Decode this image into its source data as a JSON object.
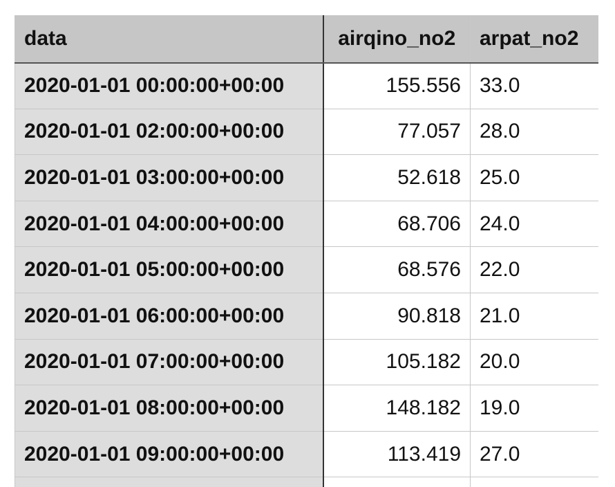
{
  "table": {
    "headers": [
      "data",
      "airqino_no2",
      "arpat_no2"
    ],
    "rows": [
      [
        "2020-01-01 00:00:00+00:00",
        "155.556",
        "33.0"
      ],
      [
        "2020-01-01 02:00:00+00:00",
        "77.057",
        "28.0"
      ],
      [
        "2020-01-01 03:00:00+00:00",
        "52.618",
        "25.0"
      ],
      [
        "2020-01-01 04:00:00+00:00",
        "68.706",
        "24.0"
      ],
      [
        "2020-01-01 05:00:00+00:00",
        "68.576",
        "22.0"
      ],
      [
        "2020-01-01 06:00:00+00:00",
        "90.818",
        "21.0"
      ],
      [
        "2020-01-01 07:00:00+00:00",
        "105.182",
        "20.0"
      ],
      [
        "2020-01-01 08:00:00+00:00",
        "148.182",
        "19.0"
      ],
      [
        "2020-01-01 09:00:00+00:00",
        "113.419",
        "27.0"
      ]
    ]
  },
  "colors": {
    "header_bg": "#c6c6c6",
    "index_bg": "#dddddd",
    "grid": "#c7c7c7"
  }
}
